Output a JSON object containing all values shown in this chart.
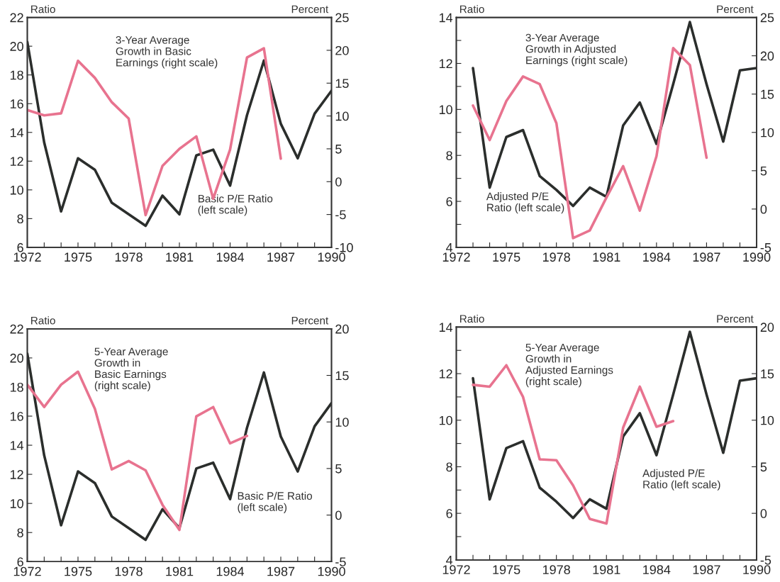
{
  "chart_data": [
    {
      "type": "line",
      "ylabel": "Ratio",
      "y2label": "Percent",
      "xlim": [
        1972,
        1990
      ],
      "xticks": [
        1972,
        {
          "value": 1973,
          "label": null
        },
        {
          "value": 1974,
          "label": null
        },
        1975,
        {
          "value": 1976,
          "label": null
        },
        {
          "value": 1977,
          "label": null
        },
        1978,
        {
          "value": 1979,
          "label": null
        },
        {
          "value": 1980,
          "label": null
        },
        1981,
        {
          "value": 1982,
          "label": null
        },
        {
          "value": 1983,
          "label": null
        },
        1984,
        {
          "value": 1985,
          "label": null
        },
        {
          "value": 1986,
          "label": null
        },
        1987,
        {
          "value": 1988,
          "label": null
        },
        {
          "value": 1989,
          "label": null
        },
        1990
      ],
      "ylim": [
        6,
        22
      ],
      "yticks": [
        6,
        8,
        10,
        12,
        14,
        16,
        18,
        20,
        22
      ],
      "y2lim": [
        -10,
        25
      ],
      "y2ticks": [
        -10,
        -5,
        0,
        5,
        10,
        15,
        20,
        25
      ],
      "grid": false,
      "legend": false,
      "series": [
        {
          "name": "Basic P/E Ratio\n(left scale)",
          "color": "#2b2e2c",
          "x": [
            1972,
            1973,
            1974,
            1975,
            1976,
            1977,
            1978,
            1979,
            1980,
            1981,
            1982,
            1983,
            1984,
            1985,
            1986,
            1987,
            1988,
            1989,
            1990
          ],
          "values": [
            20.3,
            13.3,
            8.5,
            12.2,
            11.4,
            9.1,
            8.3,
            7.5,
            9.6,
            8.3,
            12.4,
            12.8,
            10.3,
            15.2,
            19.0,
            14.6,
            12.2,
            15.3,
            16.9
          ]
        },
        {
          "name": "3-Year Average\nGrowth in Basic\nEarnings (right scale)",
          "color": "#e8738f",
          "axis": "y2",
          "x": [
            1972,
            1973,
            1974,
            1975,
            1976,
            1977,
            1978,
            1979,
            1980,
            1981,
            1982,
            1983,
            1984,
            1985,
            1986,
            1987
          ],
          "values": [
            10.9,
            10.1,
            10.4,
            18.4,
            15.8,
            12.1,
            9.6,
            -5.1,
            2.4,
            5.0,
            6.9,
            -2.6,
            4.9,
            18.9,
            20.3,
            3.5
          ]
        }
      ]
    },
    {
      "type": "line",
      "ylabel": "Ratio",
      "y2label": "Percent",
      "xlim": [
        1972,
        1990
      ],
      "xticks": [
        1972,
        {
          "value": 1973,
          "label": null
        },
        {
          "value": 1974,
          "label": null
        },
        1975,
        {
          "value": 1976,
          "label": null
        },
        {
          "value": 1977,
          "label": null
        },
        1978,
        {
          "value": 1979,
          "label": null
        },
        {
          "value": 1980,
          "label": null
        },
        1981,
        {
          "value": 1982,
          "label": null
        },
        {
          "value": 1983,
          "label": null
        },
        1984,
        {
          "value": 1985,
          "label": null
        },
        {
          "value": 1986,
          "label": null
        },
        1987,
        {
          "value": 1988,
          "label": null
        },
        {
          "value": 1989,
          "label": null
        },
        1990
      ],
      "ylim": [
        4,
        14
      ],
      "yticks": [
        4,
        {
          "value": 5,
          "label": null
        },
        6,
        {
          "value": 7,
          "label": null
        },
        8,
        {
          "value": 9,
          "label": null
        },
        10,
        {
          "value": 11,
          "label": null
        },
        12,
        {
          "value": 13,
          "label": null
        },
        14
      ],
      "y2lim": [
        -5,
        25
      ],
      "y2ticks": [
        -5,
        0,
        5,
        10,
        15,
        20,
        25
      ],
      "grid": false,
      "legend": false,
      "series": [
        {
          "name": "Adjusted P/E\nRatio (left scale)",
          "color": "#2b2e2c",
          "x": [
            1973,
            1974,
            1975,
            1976,
            1977,
            1978,
            1979,
            1980,
            1981,
            1982,
            1983,
            1984,
            1985,
            1986,
            1987,
            1988,
            1989,
            1990
          ],
          "values": [
            11.8,
            6.6,
            8.8,
            9.1,
            7.1,
            6.5,
            5.8,
            6.6,
            6.2,
            9.3,
            10.3,
            8.5,
            11.1,
            13.8,
            11.1,
            8.6,
            11.7,
            11.8
          ]
        },
        {
          "name": "3-Year Average\nGrowth in Adjusted\nEarnings (right scale)",
          "color": "#e8738f",
          "axis": "y2",
          "x": [
            1973,
            1974,
            1975,
            1976,
            1977,
            1978,
            1979,
            1980,
            1981,
            1982,
            1983,
            1984,
            1985,
            1986,
            1987
          ],
          "values": [
            13.5,
            9.0,
            14.1,
            17.3,
            16.3,
            11.2,
            -3.8,
            -2.8,
            1.5,
            5.6,
            -0.2,
            6.9,
            21.0,
            18.8,
            6.7
          ]
        }
      ]
    },
    {
      "type": "line",
      "ylabel": "Ratio",
      "y2label": "Percent",
      "xlim": [
        1972,
        1990
      ],
      "xticks": [
        1972,
        {
          "value": 1973,
          "label": null
        },
        {
          "value": 1974,
          "label": null
        },
        1975,
        {
          "value": 1976,
          "label": null
        },
        {
          "value": 1977,
          "label": null
        },
        1978,
        {
          "value": 1979,
          "label": null
        },
        {
          "value": 1980,
          "label": null
        },
        1981,
        {
          "value": 1982,
          "label": null
        },
        {
          "value": 1983,
          "label": null
        },
        1984,
        {
          "value": 1985,
          "label": null
        },
        {
          "value": 1986,
          "label": null
        },
        1987,
        {
          "value": 1988,
          "label": null
        },
        {
          "value": 1989,
          "label": null
        },
        1990
      ],
      "ylim": [
        6,
        22
      ],
      "yticks": [
        6,
        8,
        10,
        12,
        14,
        16,
        18,
        20,
        22
      ],
      "y2lim": [
        -5,
        20
      ],
      "y2ticks": [
        -5,
        0,
        5,
        10,
        15,
        20
      ],
      "grid": false,
      "legend": false,
      "series": [
        {
          "name": "Basic P/E Ratio\n(left scale)",
          "color": "#2b2e2c",
          "x": [
            1972,
            1973,
            1974,
            1975,
            1976,
            1977,
            1978,
            1979,
            1980,
            1981,
            1982,
            1983,
            1984,
            1985,
            1986,
            1987,
            1988,
            1989,
            1990
          ],
          "values": [
            20.3,
            13.3,
            8.5,
            12.2,
            11.4,
            9.1,
            8.3,
            7.5,
            9.6,
            8.3,
            12.4,
            12.8,
            10.3,
            15.2,
            19.0,
            14.6,
            12.2,
            15.3,
            16.9
          ]
        },
        {
          "name": "5-Year Average\nGrowth in\nBasic Earnings\n(right scale)",
          "color": "#e8738f",
          "axis": "y2",
          "x": [
            1972,
            1973,
            1974,
            1975,
            1976,
            1977,
            1978,
            1979,
            1980,
            1981,
            1982,
            1983,
            1984,
            1985
          ],
          "values": [
            14.0,
            11.6,
            14.0,
            15.4,
            11.4,
            4.9,
            5.8,
            4.8,
            1.1,
            -1.6,
            10.6,
            11.6,
            7.7,
            8.5
          ]
        }
      ]
    },
    {
      "type": "line",
      "ylabel": "Ratio",
      "y2label": "Percent",
      "xlim": [
        1972,
        1990
      ],
      "xticks": [
        1972,
        {
          "value": 1973,
          "label": null
        },
        {
          "value": 1974,
          "label": null
        },
        1975,
        {
          "value": 1976,
          "label": null
        },
        {
          "value": 1977,
          "label": null
        },
        1978,
        {
          "value": 1979,
          "label": null
        },
        {
          "value": 1980,
          "label": null
        },
        1981,
        {
          "value": 1982,
          "label": null
        },
        {
          "value": 1983,
          "label": null
        },
        1984,
        {
          "value": 1985,
          "label": null
        },
        {
          "value": 1986,
          "label": null
        },
        1987,
        {
          "value": 1988,
          "label": null
        },
        {
          "value": 1989,
          "label": null
        },
        1990
      ],
      "ylim": [
        4,
        14
      ],
      "yticks": [
        4,
        {
          "value": 5,
          "label": null
        },
        6,
        {
          "value": 7,
          "label": null
        },
        8,
        {
          "value": 9,
          "label": null
        },
        10,
        {
          "value": 11,
          "label": null
        },
        12,
        {
          "value": 13,
          "label": null
        },
        14
      ],
      "y2lim": [
        -5,
        20
      ],
      "y2ticks": [
        -5,
        0,
        5,
        10,
        15,
        20
      ],
      "grid": false,
      "legend": false,
      "series": [
        {
          "name": "Adjusted P/E\nRatio (left scale)",
          "color": "#2b2e2c",
          "x": [
            1973,
            1974,
            1975,
            1976,
            1977,
            1978,
            1979,
            1980,
            1981,
            1982,
            1983,
            1984,
            1985,
            1986,
            1987,
            1988,
            1989,
            1990
          ],
          "values": [
            11.8,
            6.6,
            8.8,
            9.1,
            7.1,
            6.5,
            5.8,
            6.6,
            6.2,
            9.3,
            10.3,
            8.5,
            11.1,
            13.8,
            11.1,
            8.6,
            11.7,
            11.8
          ]
        },
        {
          "name": "5-Year Average\nGrowth in\nAdjusted Earnings\n(right scale)",
          "color": "#e8738f",
          "axis": "y2",
          "x": [
            1973,
            1974,
            1975,
            1976,
            1977,
            1978,
            1979,
            1980,
            1981,
            1982,
            1983,
            1984,
            1985
          ],
          "values": [
            13.8,
            13.6,
            15.9,
            12.5,
            5.8,
            5.7,
            3.0,
            -0.6,
            -1.1,
            9.2,
            13.6,
            9.3,
            9.9
          ]
        }
      ]
    }
  ]
}
